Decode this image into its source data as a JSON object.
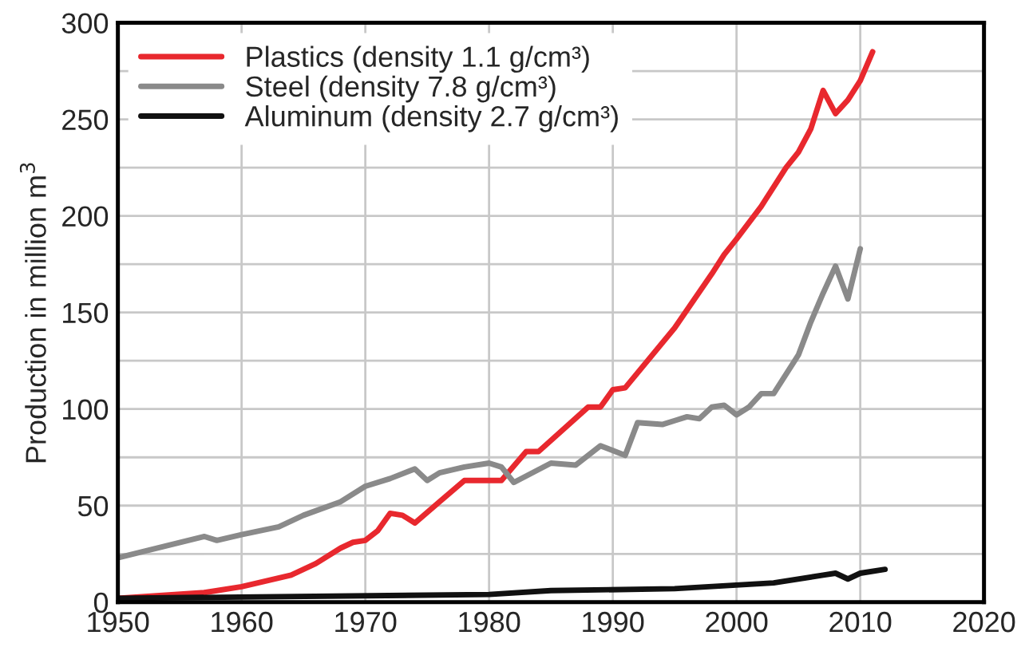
{
  "chart_data": {
    "type": "line",
    "ylabel": "Production in million m$^{3}$",
    "xlim": [
      1950,
      2020
    ],
    "xticks": [
      1950,
      1960,
      1970,
      1980,
      1990,
      2000,
      2010,
      2020
    ],
    "ylim": [
      0,
      300
    ],
    "yticks": [
      0,
      {
        "value": 25,
        "label": null
      },
      50,
      {
        "value": 75,
        "label": null
      },
      100,
      {
        "value": 125,
        "label": null
      },
      150,
      {
        "value": 175,
        "label": null
      },
      200,
      {
        "value": 225,
        "label": null
      },
      250,
      {
        "value": 275,
        "label": null
      },
      300
    ],
    "grid": true,
    "legend": "top left",
    "series": [
      {
        "name": "Plastics (density 1.1 g/cm³)",
        "color": "#e8282e",
        "x": [
          1950,
          1957,
          1960,
          1964,
          1966,
          1968,
          1969,
          1970,
          1971,
          1972,
          1973,
          1974,
          1976,
          1978,
          1980,
          1981,
          1983,
          1984,
          1988,
          1989,
          1990,
          1991,
          1995,
          1998,
          1999,
          2000,
          2002,
          2003,
          2004,
          2005,
          2006,
          2007,
          2008,
          2009,
          2010,
          2011
        ],
        "values": [
          2,
          5,
          8,
          14,
          20,
          28,
          31,
          32,
          37,
          46,
          45,
          41,
          52,
          63,
          63,
          63,
          78,
          78,
          101,
          101,
          110,
          111,
          142,
          170,
          180,
          188,
          205,
          215,
          225,
          233,
          245,
          265,
          253,
          260,
          270,
          285
        ]
      },
      {
        "name": "Steel (density 7.8 g/cm³)",
        "color": "#8a8a8a",
        "x": [
          1950,
          1957,
          1958,
          1960,
          1963,
          1965,
          1968,
          1970,
          1972,
          1974,
          1975,
          1976,
          1978,
          1980,
          1981,
          1982,
          1985,
          1987,
          1989,
          1991,
          1992,
          1994,
          1995,
          1996,
          1997,
          1998,
          1999,
          2000,
          2001,
          2002,
          2003,
          2005,
          2006,
          2007,
          2008,
          2009,
          2010
        ],
        "values": [
          23,
          34,
          32,
          35,
          39,
          45,
          52,
          60,
          64,
          69,
          63,
          67,
          70,
          72,
          70,
          62,
          72,
          71,
          81,
          76,
          93,
          92,
          94,
          96,
          95,
          101,
          102,
          97,
          101,
          108,
          108,
          128,
          145,
          160,
          174,
          157,
          183
        ]
      },
      {
        "name": "Aluminum (density 2.7 g/cm³)",
        "color": "#111111",
        "x": [
          1950,
          1980,
          1985,
          1995,
          2003,
          2007,
          2008,
          2009,
          2010,
          2012
        ],
        "values": [
          2,
          4,
          6,
          7,
          10,
          14,
          15,
          12,
          15,
          17
        ]
      }
    ]
  }
}
